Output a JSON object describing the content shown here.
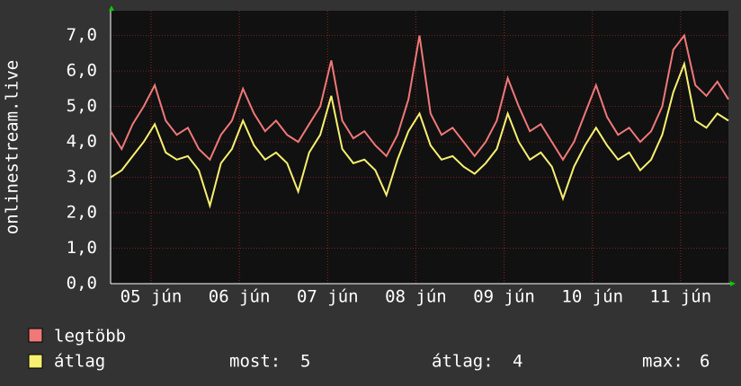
{
  "chart_data": {
    "type": "line",
    "y_label": "onlinestream.live",
    "x": [
      0,
      3,
      6,
      9,
      12,
      15,
      18,
      21,
      24,
      27,
      30,
      33,
      36,
      39,
      42,
      45,
      48,
      51,
      54,
      57,
      60,
      63,
      66,
      69,
      72,
      75,
      78,
      81,
      84,
      87,
      90,
      93,
      96,
      99,
      102,
      105,
      108,
      111,
      114,
      117,
      120,
      123,
      126,
      129,
      132,
      135,
      138,
      141,
      144,
      147,
      150,
      153,
      156,
      159,
      162,
      165,
      168
    ],
    "xlim": [
      0,
      168
    ],
    "xticks": [
      {
        "value": 11,
        "label": "05 jún"
      },
      {
        "value": 35,
        "label": "06 jún"
      },
      {
        "value": 59,
        "label": "07 jún"
      },
      {
        "value": 83,
        "label": "08 jún"
      },
      {
        "value": 107,
        "label": "09 jún"
      },
      {
        "value": 131,
        "label": "10 jún"
      },
      {
        "value": 155,
        "label": "11 jún"
      }
    ],
    "ylim": [
      0,
      7.7
    ],
    "yticks": [
      {
        "value": 0,
        "label": "0,0"
      },
      {
        "value": 1,
        "label": "1,0"
      },
      {
        "value": 2,
        "label": "2,0"
      },
      {
        "value": 3,
        "label": "3,0"
      },
      {
        "value": 4,
        "label": "4,0"
      },
      {
        "value": 5,
        "label": "5,0"
      },
      {
        "value": 6,
        "label": "6,0"
      },
      {
        "value": 7,
        "label": "7,0"
      }
    ],
    "grid": true,
    "series": [
      {
        "name": "legtöbb",
        "color": "#f07878",
        "values": [
          4.3,
          3.8,
          4.5,
          5.0,
          5.6,
          4.6,
          4.2,
          4.4,
          3.8,
          3.5,
          4.2,
          4.6,
          5.5,
          4.8,
          4.3,
          4.6,
          4.2,
          4.0,
          4.5,
          5.0,
          6.3,
          4.6,
          4.1,
          4.3,
          3.9,
          3.6,
          4.2,
          5.2,
          7.0,
          4.8,
          4.2,
          4.4,
          4.0,
          3.6,
          4.0,
          4.6,
          5.8,
          5.0,
          4.3,
          4.5,
          4.0,
          3.5,
          4.0,
          4.8,
          5.6,
          4.7,
          4.2,
          4.4,
          4.0,
          4.3,
          5.0,
          6.6,
          7.0,
          5.6,
          5.3,
          5.7,
          5.2
        ]
      },
      {
        "name": "átlag",
        "color": "#f8f070",
        "values": [
          3.0,
          3.2,
          3.6,
          4.0,
          4.5,
          3.7,
          3.5,
          3.6,
          3.2,
          2.2,
          3.4,
          3.8,
          4.6,
          3.9,
          3.5,
          3.7,
          3.4,
          2.6,
          3.7,
          4.2,
          5.3,
          3.8,
          3.4,
          3.5,
          3.2,
          2.5,
          3.5,
          4.3,
          4.8,
          3.9,
          3.5,
          3.6,
          3.3,
          3.1,
          3.4,
          3.8,
          4.8,
          4.0,
          3.5,
          3.7,
          3.3,
          2.4,
          3.3,
          3.9,
          4.4,
          3.9,
          3.5,
          3.7,
          3.2,
          3.5,
          4.2,
          5.4,
          6.2,
          4.6,
          4.4,
          4.8,
          4.6
        ]
      }
    ],
    "stats": [
      {
        "label": "most:",
        "value": 5
      },
      {
        "label": "átlag:",
        "value": 4
      },
      {
        "label": "max:",
        "value": 6
      }
    ]
  }
}
